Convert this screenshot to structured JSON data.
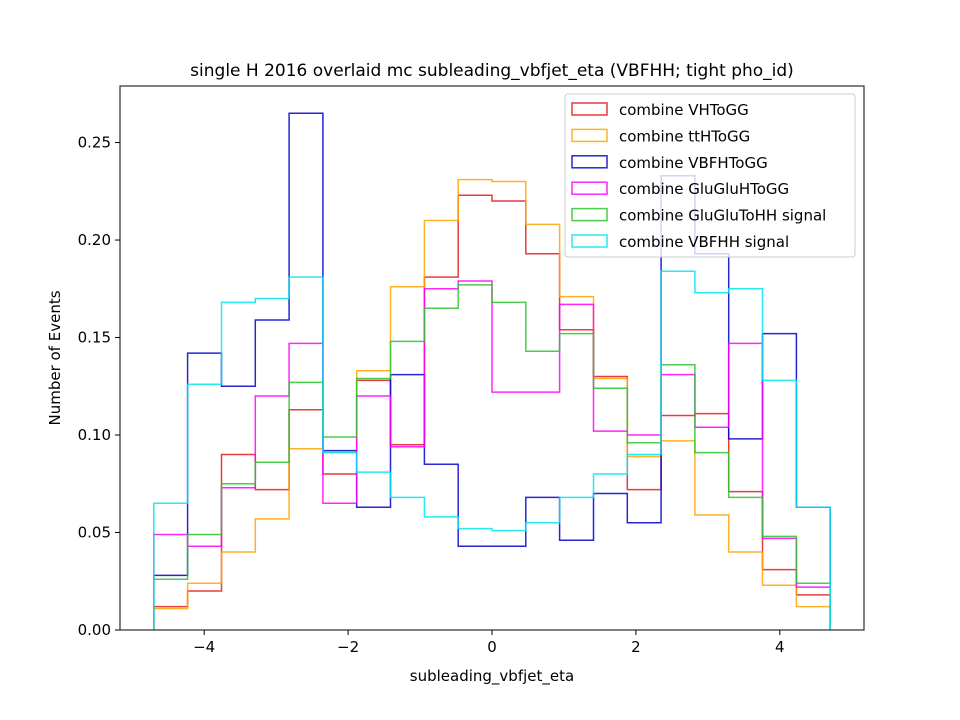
{
  "chart_data": {
    "type": "histogram-step",
    "title": "single H 2016 overlaid mc subleading_vbfjet_eta (VBFHH; tight pho_id)",
    "xlabel": "subleading_vbfjet_eta",
    "ylabel": "Number of Events",
    "xlim": [
      -5.17,
      5.17
    ],
    "ylim": [
      0,
      0.279
    ],
    "x_ticks": [
      -4,
      -2,
      0,
      2,
      4
    ],
    "x_tick_labels": [
      "−4",
      "−2",
      "0",
      "2",
      "4"
    ],
    "y_ticks": [
      0.0,
      0.05,
      0.1,
      0.15,
      0.2,
      0.25
    ],
    "y_tick_labels": [
      "0.00",
      "0.05",
      "0.10",
      "0.15",
      "0.20",
      "0.25"
    ],
    "legend_position": "top-right",
    "grid": false,
    "bin_edges": [
      -4.7,
      -4.23,
      -3.76,
      -3.29,
      -2.82,
      -2.35,
      -1.88,
      -1.41,
      -0.94,
      -0.47,
      0.0,
      0.47,
      0.94,
      1.41,
      1.88,
      2.35,
      2.82,
      3.29,
      3.76,
      4.23,
      4.7
    ],
    "series": [
      {
        "name": "combine VHToGG",
        "color": "#e41a1c",
        "values": [
          0.012,
          0.02,
          0.09,
          0.072,
          0.113,
          0.08,
          0.128,
          0.095,
          0.181,
          0.223,
          0.22,
          0.193,
          0.154,
          0.13,
          0.072,
          0.11,
          0.111,
          0.071,
          0.031,
          0.018
        ]
      },
      {
        "name": "combine ttHToGG",
        "color": "#ffa500",
        "values": [
          0.011,
          0.024,
          0.04,
          0.057,
          0.093,
          0.091,
          0.133,
          0.176,
          0.21,
          0.231,
          0.23,
          0.208,
          0.171,
          0.129,
          0.089,
          0.097,
          0.059,
          0.04,
          0.023,
          0.012
        ]
      },
      {
        "name": "combine VBFHToGG",
        "color": "#0000cd",
        "values": [
          0.028,
          0.142,
          0.125,
          0.159,
          0.265,
          0.092,
          0.063,
          0.131,
          0.085,
          0.043,
          0.043,
          0.068,
          0.046,
          0.07,
          0.055,
          0.233,
          0.193,
          0.098,
          0.152,
          0.063
        ]
      },
      {
        "name": "combine GluGluHToGG",
        "color": "#ff00ff",
        "values": [
          0.049,
          0.043,
          0.073,
          0.12,
          0.147,
          0.065,
          0.12,
          0.094,
          0.175,
          0.179,
          0.122,
          0.122,
          0.167,
          0.102,
          0.1,
          0.131,
          0.104,
          0.147,
          0.047,
          0.022
        ]
      },
      {
        "name": "combine GluGluToHH signal",
        "color": "#2ec22e",
        "values": [
          0.026,
          0.049,
          0.075,
          0.086,
          0.127,
          0.099,
          0.129,
          0.148,
          0.165,
          0.177,
          0.168,
          0.143,
          0.152,
          0.124,
          0.096,
          0.136,
          0.091,
          0.068,
          0.048,
          0.024
        ]
      },
      {
        "name": "combine VBFHH signal",
        "color": "#00e5ee",
        "values": [
          0.065,
          0.126,
          0.168,
          0.17,
          0.181,
          0.091,
          0.081,
          0.068,
          0.058,
          0.052,
          0.051,
          0.055,
          0.068,
          0.08,
          0.09,
          0.184,
          0.173,
          0.175,
          0.128,
          0.063
        ]
      }
    ]
  }
}
